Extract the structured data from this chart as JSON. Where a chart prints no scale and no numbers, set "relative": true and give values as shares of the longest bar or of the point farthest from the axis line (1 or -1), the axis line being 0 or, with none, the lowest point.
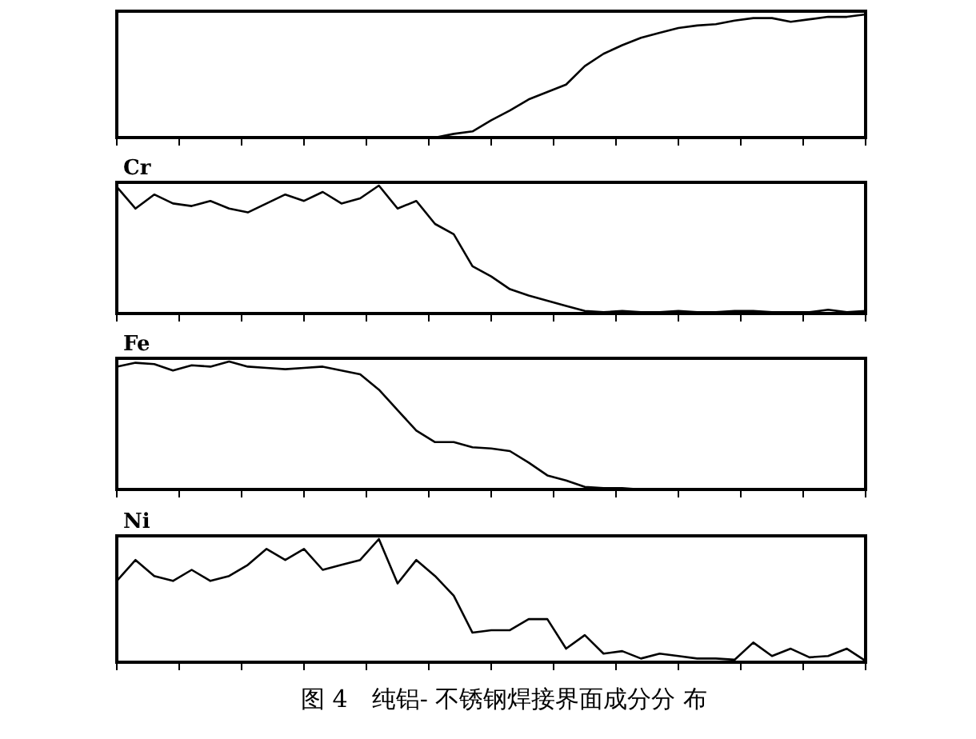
{
  "chart_data": [
    {
      "type": "line",
      "relative": true,
      "categories": [
        null,
        null,
        null,
        null,
        null,
        null,
        null,
        null,
        null,
        null,
        null,
        null,
        null,
        null,
        null,
        null,
        null,
        null,
        null,
        null,
        null,
        null,
        null,
        null,
        null,
        null,
        null,
        null,
        null,
        null,
        null,
        null,
        null,
        null,
        null,
        null,
        null,
        null,
        null,
        null,
        null
      ],
      "series": [
        {
          "color": "#000000",
          "values": [
            null,
            null,
            null,
            null,
            null,
            null,
            null,
            null,
            null,
            null,
            null,
            null,
            null,
            null,
            null,
            null,
            null,
            0,
            0.03,
            0.05,
            0.14,
            0.22,
            0.31,
            0.37,
            0.43,
            0.58,
            0.68,
            0.75,
            0.81,
            0.85,
            0.89,
            0.91,
            0.92,
            0.95,
            0.97,
            0.97,
            0.94,
            0.96,
            0.98,
            0.98,
            1
          ]
        }
      ]
    },
    {
      "type": "line",
      "relative": true,
      "title": "Cr",
      "categories": [
        null,
        null,
        null,
        null,
        null,
        null,
        null,
        null,
        null,
        null,
        null,
        null,
        null,
        null,
        null,
        null,
        null,
        null,
        null,
        null,
        null,
        null,
        null,
        null,
        null,
        null,
        null,
        null,
        null,
        null,
        null,
        null,
        null,
        null,
        null,
        null,
        null,
        null,
        null,
        null,
        null
      ],
      "series": [
        {
          "color": "#000000",
          "values": [
            0.99,
            0.82,
            0.93,
            0.86,
            0.84,
            0.88,
            0.82,
            0.79,
            0.86,
            0.93,
            0.88,
            0.95,
            0.86,
            0.9,
            1,
            0.82,
            0.88,
            0.7,
            0.62,
            0.37,
            0.29,
            0.19,
            0.14,
            0.1,
            0.06,
            0.02,
            0.01,
            0.02,
            0.01,
            0.01,
            0.02,
            0.01,
            0.01,
            0.02,
            0.02,
            0.01,
            0.01,
            0.01,
            0.03,
            0.01,
            0.02
          ]
        }
      ]
    },
    {
      "type": "line",
      "relative": true,
      "title": "Fe",
      "categories": [
        null,
        null,
        null,
        null,
        null,
        null,
        null,
        null,
        null,
        null,
        null,
        null,
        null,
        null,
        null,
        null,
        null,
        null,
        null,
        null,
        null,
        null,
        null,
        null,
        null,
        null,
        null,
        null,
        null,
        null,
        null,
        null,
        null,
        null,
        null,
        null,
        null,
        null,
        null,
        null,
        null
      ],
      "series": [
        {
          "color": "#000000",
          "values": [
            0.96,
            0.99,
            0.98,
            0.93,
            0.97,
            0.96,
            1,
            0.96,
            0.95,
            0.94,
            0.95,
            0.96,
            0.93,
            0.9,
            0.78,
            0.62,
            0.46,
            0.37,
            0.37,
            0.33,
            0.32,
            0.3,
            0.21,
            0.11,
            0.07,
            0.02,
            0.01,
            0.01,
            0,
            null,
            null,
            null,
            null,
            null,
            null,
            null,
            null,
            null,
            null,
            null,
            null
          ]
        }
      ]
    },
    {
      "type": "line",
      "relative": true,
      "title": "Ni",
      "annotations": [
        "图 4　纯铝- 不锈钢焊接界面成分分 布"
      ],
      "categories": [
        null,
        null,
        null,
        null,
        null,
        null,
        null,
        null,
        null,
        null,
        null,
        null,
        null,
        null,
        null,
        null,
        null,
        null,
        null,
        null,
        null,
        null,
        null,
        null,
        null,
        null,
        null,
        null,
        null,
        null,
        null,
        null,
        null,
        null,
        null,
        null,
        null,
        null,
        null,
        null,
        null
      ],
      "series": [
        {
          "color": "#000000",
          "values": [
            0.66,
            0.83,
            0.7,
            0.66,
            0.75,
            0.66,
            0.7,
            0.79,
            0.92,
            0.83,
            0.92,
            0.75,
            0.79,
            0.83,
            1,
            0.64,
            0.83,
            0.7,
            0.54,
            0.24,
            0.26,
            0.26,
            0.35,
            0.35,
            0.11,
            0.22,
            0.07,
            0.09,
            0.03,
            0.07,
            0.05,
            0.03,
            0.03,
            0.02,
            0.16,
            0.05,
            0.11,
            0.04,
            0.05,
            0.11,
            0.01
          ]
        }
      ]
    }
  ]
}
